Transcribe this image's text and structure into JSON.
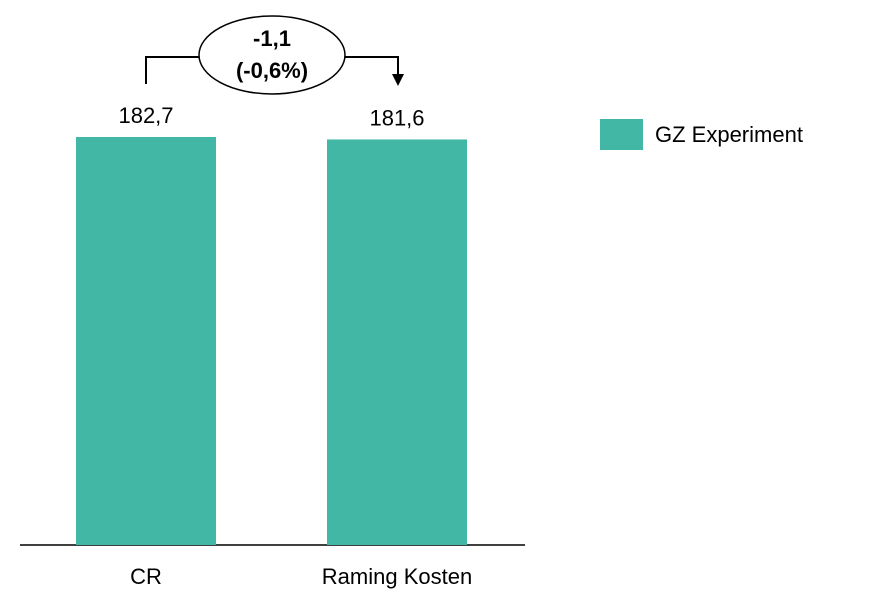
{
  "chart_data": {
    "type": "bar",
    "categories": [
      "CR",
      "Raming Kosten"
    ],
    "series": [
      {
        "name": "GZ Experiment",
        "color": "#43b7a5",
        "values": [
          182.7,
          181.6
        ],
        "value_labels": [
          "182,7",
          "181,6"
        ]
      }
    ],
    "annotations": [
      "-1,1",
      "(-0,6%)"
    ],
    "legend": "right"
  }
}
